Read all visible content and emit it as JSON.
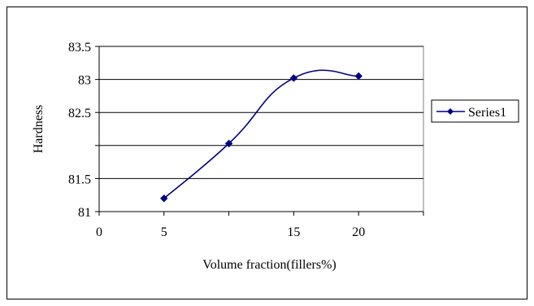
{
  "chart_data": {
    "type": "line",
    "xlabel": "Volume fraction(fillers%)",
    "ylabel": "Hardness",
    "xlim": [
      0,
      25
    ],
    "ylim": [
      81,
      83.5
    ],
    "x_ticks": [
      "0",
      "5",
      "15",
      "20"
    ],
    "y_ticks": [
      "81",
      "81.5",
      "82.5",
      "83",
      "83.5"
    ],
    "grid": "horizontal",
    "legend_position": "right",
    "smoothed": true,
    "series": [
      {
        "name": "Series1",
        "x": [
          5,
          10,
          15,
          20
        ],
        "y": [
          81.2,
          82.03,
          83.02,
          83.05
        ],
        "color": "#000080",
        "marker": "diamond"
      }
    ]
  }
}
